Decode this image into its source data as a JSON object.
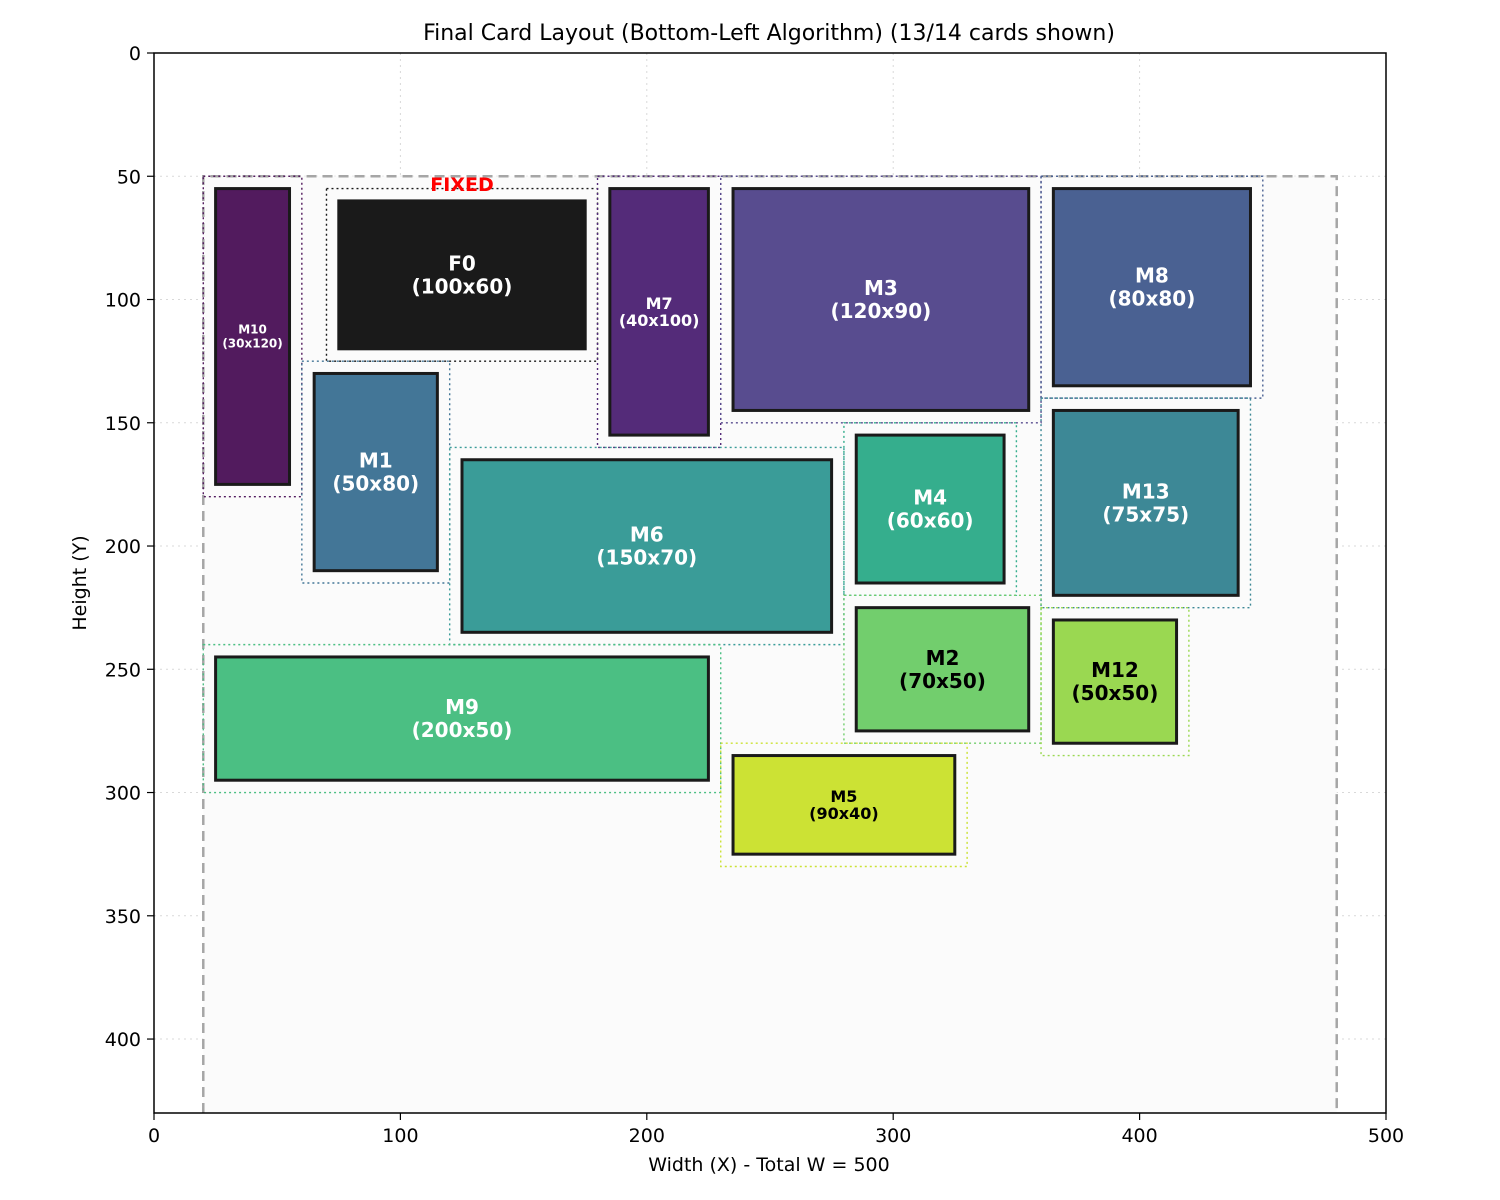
{
  "chart_data": {
    "type": "layout",
    "title": "Final Card Layout (Bottom-Left Algorithm) (13/14 cards shown)",
    "xlabel": "Width (X) - Total W = 500",
    "ylabel": "Height (Y)",
    "xlim": [
      0,
      500
    ],
    "ylim": [
      430,
      0
    ],
    "y_inverted": true,
    "grid": true,
    "xticks": [
      0,
      100,
      200,
      300,
      400,
      500
    ],
    "yticks": [
      0,
      50,
      100,
      150,
      200,
      250,
      300,
      350,
      400
    ],
    "container": {
      "x0": 20,
      "x1": 480,
      "y0": 50,
      "y1": 430
    },
    "margin": 5,
    "fixed_label": "FIXED",
    "fixed_color": "#ff0000",
    "cards": [
      {
        "id": "M10",
        "w": 30,
        "h": 120,
        "x": 25,
        "y": 55,
        "color": "#521b5e",
        "text_color": "#ffffff",
        "size": "small",
        "fixed": false
      },
      {
        "id": "F0",
        "w": 100,
        "h": 60,
        "x": 75,
        "y": 60,
        "color": "#1a1a1a",
        "text_color": "#ffffff",
        "size": "large",
        "fixed": true
      },
      {
        "id": "M7",
        "w": 40,
        "h": 100,
        "x": 185,
        "y": 55,
        "color": "#542b79",
        "text_color": "#ffffff",
        "size": "medium",
        "fixed": false
      },
      {
        "id": "M3",
        "w": 120,
        "h": 90,
        "x": 235,
        "y": 55,
        "color": "#584c8f",
        "text_color": "#ffffff",
        "size": "large",
        "fixed": false
      },
      {
        "id": "M8",
        "w": 80,
        "h": 80,
        "x": 365,
        "y": 55,
        "color": "#4a6192",
        "text_color": "#ffffff",
        "size": "large",
        "fixed": false
      },
      {
        "id": "M1",
        "w": 50,
        "h": 80,
        "x": 65,
        "y": 130,
        "color": "#437697",
        "text_color": "#ffffff",
        "size": "large",
        "fixed": false
      },
      {
        "id": "M6",
        "w": 150,
        "h": 70,
        "x": 125,
        "y": 165,
        "color": "#3a9c98",
        "text_color": "#ffffff",
        "size": "large",
        "fixed": false
      },
      {
        "id": "M4",
        "w": 60,
        "h": 60,
        "x": 285,
        "y": 155,
        "color": "#35ae8d",
        "text_color": "#ffffff",
        "size": "large",
        "fixed": false
      },
      {
        "id": "M13",
        "w": 75,
        "h": 75,
        "x": 365,
        "y": 145,
        "color": "#3d8896",
        "text_color": "#ffffff",
        "size": "large",
        "fixed": false
      },
      {
        "id": "M2",
        "w": 70,
        "h": 50,
        "x": 285,
        "y": 225,
        "color": "#72ce6d",
        "text_color": "#000000",
        "size": "large",
        "fixed": false
      },
      {
        "id": "M12",
        "w": 50,
        "h": 50,
        "x": 365,
        "y": 230,
        "color": "#9ad851",
        "text_color": "#000000",
        "size": "large",
        "fixed": false
      },
      {
        "id": "M9",
        "w": 200,
        "h": 50,
        "x": 25,
        "y": 245,
        "color": "#4bbf83",
        "text_color": "#ffffff",
        "size": "large",
        "fixed": false
      },
      {
        "id": "M5",
        "w": 90,
        "h": 40,
        "x": 235,
        "y": 285,
        "color": "#cce234",
        "text_color": "#000000",
        "size": "medium",
        "fixed": false
      }
    ]
  }
}
